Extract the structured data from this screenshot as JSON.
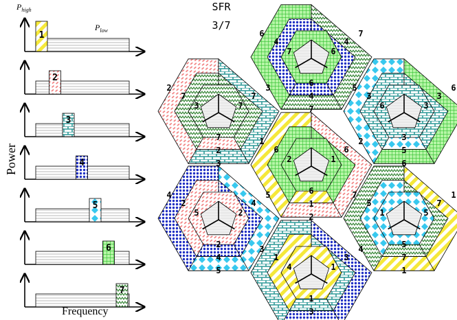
{
  "power_panel": {
    "y_axis_label": "Power",
    "x_axis_label": "Frequency",
    "p_high": {
      "main": "P",
      "sub": "high"
    },
    "p_low": {
      "main": "P",
      "sub": "low"
    },
    "bands": [
      "1",
      "2",
      "3",
      "4",
      "5",
      "6",
      "7"
    ]
  },
  "reuse": {
    "title": "SFR",
    "factor": "3/7"
  },
  "cells": [
    {
      "id": "top",
      "outer": "7",
      "middle": "4",
      "inner": "6",
      "left": "6",
      "right": "7",
      "lefti": "4",
      "righti": "4",
      "leftin": "7",
      "rightin": "6"
    },
    {
      "id": "upper-left",
      "outer": "3",
      "middle": "2",
      "inner": "7",
      "left": "2",
      "right": "3",
      "lefti": "7",
      "righti": "7",
      "leftin": "3",
      "rightin": "7"
    },
    {
      "id": "upper-right",
      "outer": "6",
      "middle": "5",
      "inner": "3",
      "left": "5",
      "right": "6",
      "lefti": "3",
      "righti": "3",
      "leftin": "6",
      "rightin": "3"
    },
    {
      "id": "center",
      "outer": "2",
      "middle": "1",
      "inner": "6",
      "left": "1",
      "right": "2",
      "lefti": "6",
      "righti": "6",
      "leftin": "2",
      "rightin": "1"
    },
    {
      "id": "lower-left",
      "outer": "5",
      "middle": "4",
      "inner": "2",
      "left": "4",
      "right": "5",
      "lefti": "2",
      "righti": "4",
      "leftin": "5",
      "rightin": "2"
    },
    {
      "id": "lower-right",
      "outer": "1",
      "middle": "7",
      "inner": "5",
      "left": "7",
      "right": "1",
      "lefti": "5",
      "righti": "7",
      "leftin": "1",
      "rightin": "5"
    },
    {
      "id": "bottom",
      "outer": "4",
      "middle": "3",
      "inner": "1",
      "left": "3",
      "right": "4",
      "lefti": "1",
      "righti": "3",
      "leftin": "4",
      "rightin": "1"
    }
  ]
}
